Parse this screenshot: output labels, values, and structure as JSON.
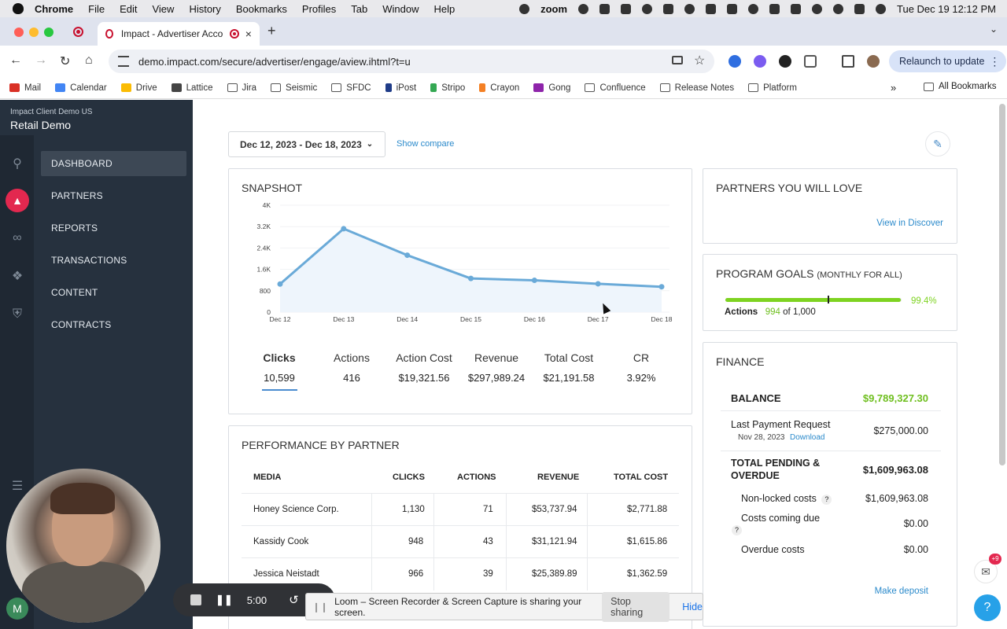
{
  "menubar": {
    "app": "Chrome",
    "items": [
      "File",
      "Edit",
      "View",
      "History",
      "Bookmarks",
      "Profiles",
      "Tab",
      "Window",
      "Help"
    ],
    "zoom_label": "zoom",
    "clock": "Tue Dec 19  12:12 PM"
  },
  "tab": {
    "title": "Impact - Advertiser Acco",
    "close": "×",
    "new_tab": "+"
  },
  "toolbar": {
    "url": "demo.impact.com/secure/advertiser/engage/aview.ihtml?t=u",
    "relaunch_label": "Relaunch to update"
  },
  "bookmarks": {
    "items": [
      "Mail",
      "Calendar",
      "Drive",
      "Lattice",
      "Jira",
      "Seismic",
      "SFDC",
      "iPost",
      "Stripo",
      "Crayon",
      "Gong",
      "Confluence",
      "Release Notes",
      "Platform"
    ],
    "more": "»",
    "all": "All Bookmarks"
  },
  "sidebar": {
    "account_org": "Impact Client Demo US",
    "account_name": "Retail Demo",
    "nav": [
      "DASHBOARD",
      "PARTNERS",
      "REPORTS",
      "TRANSACTIONS",
      "CONTENT",
      "CONTRACTS"
    ]
  },
  "header": {
    "date_range": "Dec 12, 2023 - Dec 18, 2023",
    "show_compare": "Show compare"
  },
  "snapshot": {
    "title": "SNAPSHOT",
    "metrics": [
      {
        "label": "Clicks",
        "value": "10,599"
      },
      {
        "label": "Actions",
        "value": "416"
      },
      {
        "label": "Action Cost",
        "value": "$19,321.56"
      },
      {
        "label": "Revenue",
        "value": "$297,989.24"
      },
      {
        "label": "Total Cost",
        "value": "$21,191.58"
      },
      {
        "label": "CR",
        "value": "3.92%"
      }
    ]
  },
  "chart_data": {
    "type": "area",
    "categories": [
      "Dec 12",
      "Dec 13",
      "Dec 14",
      "Dec 15",
      "Dec 16",
      "Dec 17",
      "Dec 18"
    ],
    "values": [
      1050,
      3120,
      2130,
      1260,
      1190,
      1060,
      950
    ],
    "yticks": [
      "0",
      "800",
      "1.6K",
      "2.4K",
      "3.2K",
      "4K"
    ],
    "ylim": [
      0,
      4000
    ],
    "line_color": "#6aaad8",
    "fill_color": "#eef5fc"
  },
  "performance": {
    "title": "PERFORMANCE BY PARTNER",
    "columns": [
      "MEDIA",
      "CLICKS",
      "ACTIONS",
      "REVENUE",
      "TOTAL COST"
    ],
    "rows": [
      [
        "Honey Science Corp.",
        "1,130",
        "71",
        "$53,737.94",
        "$2,771.88"
      ],
      [
        "Kassidy Cook",
        "948",
        "43",
        "$31,121.94",
        "$1,615.86"
      ],
      [
        "Jessica Neistadt",
        "966",
        "39",
        "$25,389.89",
        "$1,362.59"
      ]
    ]
  },
  "partners_love": {
    "title": "PARTNERS YOU WILL LOVE",
    "link": "View in Discover"
  },
  "goals": {
    "title": "PROGRAM GOALS",
    "subtitle": "(MONTHLY FOR ALL)",
    "percent": "99.4%",
    "progress": 0.994,
    "label": "Actions",
    "current": "994",
    "of_text": "of 1,000"
  },
  "finance": {
    "title": "FINANCE",
    "balance_label": "BALANCE",
    "balance_value": "$9,789,327.30",
    "last_payment_label": "Last Payment Request",
    "last_payment_date": "Nov 28, 2023",
    "download": "Download",
    "last_payment_value": "$275,000.00",
    "pending_label": "TOTAL PENDING & OVERDUE",
    "pending_value": "$1,609,963.08",
    "nonlocked_label": "Non-locked costs",
    "nonlocked_value": "$1,609,963.08",
    "coming_label": "Costs coming due",
    "coming_value": "$0.00",
    "overdue_label": "Overdue costs",
    "overdue_value": "$0.00",
    "make_deposit": "Make deposit"
  },
  "loom": {
    "timer": "5:00",
    "share_message": "Loom – Screen Recorder & Screen Capture is sharing your screen.",
    "stop_sharing": "Stop sharing",
    "hide": "Hide",
    "avatar_initial": "M",
    "chat_badge": "+9",
    "help": "?"
  }
}
